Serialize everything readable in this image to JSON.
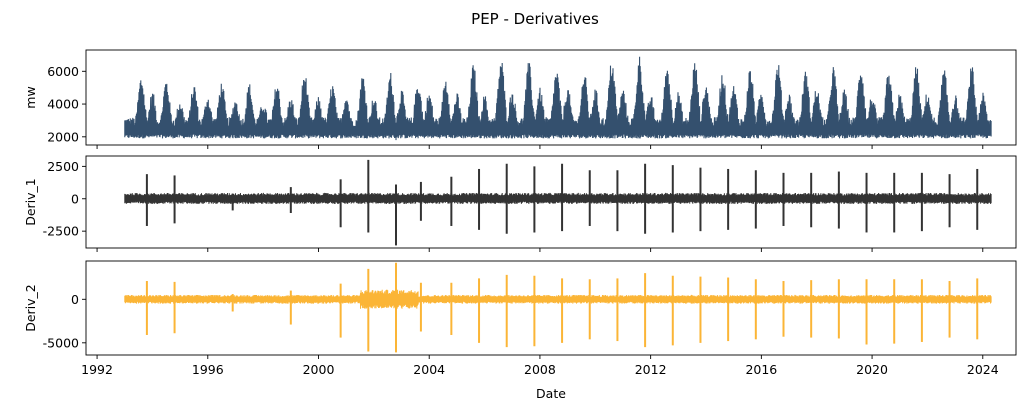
{
  "chart_data": {
    "type": "line",
    "title": "PEP - Derivatives",
    "xlabel": "Date",
    "x_ticks": [
      "1992",
      "1996",
      "2000",
      "2004",
      "2008",
      "2012",
      "2016",
      "2020",
      "2024"
    ],
    "xlim": [
      1991.6,
      2025.2
    ],
    "data_range": [
      1993.0,
      2024.3
    ],
    "panels": [
      {
        "name": "mw",
        "ylabel": "mw",
        "color": "#34506e",
        "ylim": [
          1500,
          7300
        ],
        "y_ticks": [
          2000,
          4000,
          6000
        ],
        "baseline_range": [
          1900,
          2600
        ],
        "seasonal_peaks": [
          {
            "x": 1993.6,
            "y": 5800
          },
          {
            "x": 1994.5,
            "y": 5600
          },
          {
            "x": 1995.5,
            "y": 5300
          },
          {
            "x": 1996.5,
            "y": 5400
          },
          {
            "x": 1997.5,
            "y": 5300
          },
          {
            "x": 1998.5,
            "y": 5400
          },
          {
            "x": 1999.5,
            "y": 6000
          },
          {
            "x": 2000.5,
            "y": 5300
          },
          {
            "x": 2001.6,
            "y": 5900
          },
          {
            "x": 2002.6,
            "y": 6000
          },
          {
            "x": 2003.6,
            "y": 5500
          },
          {
            "x": 2004.6,
            "y": 5700
          },
          {
            "x": 2005.6,
            "y": 6500
          },
          {
            "x": 2006.6,
            "y": 6900
          },
          {
            "x": 2007.6,
            "y": 6600
          },
          {
            "x": 2008.6,
            "y": 6200
          },
          {
            "x": 2009.6,
            "y": 6000
          },
          {
            "x": 2010.6,
            "y": 6800
          },
          {
            "x": 2011.6,
            "y": 7000
          },
          {
            "x": 2012.6,
            "y": 6500
          },
          {
            "x": 2013.6,
            "y": 6700
          },
          {
            "x": 2014.6,
            "y": 6000
          },
          {
            "x": 2015.6,
            "y": 6300
          },
          {
            "x": 2016.6,
            "y": 6600
          },
          {
            "x": 2017.6,
            "y": 6100
          },
          {
            "x": 2018.6,
            "y": 6400
          },
          {
            "x": 2019.6,
            "y": 6500
          },
          {
            "x": 2020.6,
            "y": 6000
          },
          {
            "x": 2021.6,
            "y": 6400
          },
          {
            "x": 2022.6,
            "y": 6200
          },
          {
            "x": 2023.6,
            "y": 6400
          }
        ],
        "winter_peaks": [
          {
            "x": 1994.0,
            "y": 4800
          },
          {
            "x": 1995.0,
            "y": 4300
          },
          {
            "x": 1996.0,
            "y": 4600
          },
          {
            "x": 1997.0,
            "y": 4400
          },
          {
            "x": 1998.0,
            "y": 4200
          },
          {
            "x": 1999.0,
            "y": 4500
          },
          {
            "x": 2000.0,
            "y": 4500
          },
          {
            "x": 2001.0,
            "y": 4700
          },
          {
            "x": 2002.0,
            "y": 4500
          },
          {
            "x": 2003.0,
            "y": 4900
          },
          {
            "x": 2004.0,
            "y": 4800
          },
          {
            "x": 2005.0,
            "y": 4700
          },
          {
            "x": 2006.0,
            "y": 4600
          },
          {
            "x": 2007.0,
            "y": 4900
          },
          {
            "x": 2008.0,
            "y": 5000
          },
          {
            "x": 2009.0,
            "y": 5100
          },
          {
            "x": 2010.0,
            "y": 5000
          },
          {
            "x": 2011.0,
            "y": 5000
          },
          {
            "x": 2012.0,
            "y": 4600
          },
          {
            "x": 2013.0,
            "y": 4800
          },
          {
            "x": 2014.0,
            "y": 5300
          },
          {
            "x": 2015.0,
            "y": 5200
          },
          {
            "x": 2016.0,
            "y": 4800
          },
          {
            "x": 2017.0,
            "y": 4700
          },
          {
            "x": 2018.0,
            "y": 5100
          },
          {
            "x": 2019.0,
            "y": 4900
          },
          {
            "x": 2020.0,
            "y": 4600
          },
          {
            "x": 2021.0,
            "y": 4700
          },
          {
            "x": 2022.0,
            "y": 4800
          },
          {
            "x": 2023.0,
            "y": 4600
          },
          {
            "x": 2024.0,
            "y": 4700
          }
        ],
        "dips": [
          {
            "x": 2002.8,
            "y": 1800
          },
          {
            "x": 2007.0,
            "y": 1900
          },
          {
            "x": 2010.9,
            "y": 2000
          }
        ]
      },
      {
        "name": "Deriv_1",
        "ylabel": "Deriv_1",
        "color": "#333333",
        "ylim": [
          -3800,
          3300
        ],
        "y_ticks": [
          -2500,
          0,
          2500
        ],
        "noise_band": [
          -400,
          450
        ],
        "spikes": [
          {
            "x": 1993.8,
            "hi": 1900,
            "lo": -2100
          },
          {
            "x": 1994.8,
            "hi": 1800,
            "lo": -1900
          },
          {
            "x": 1996.9,
            "hi": 400,
            "lo": -900
          },
          {
            "x": 1999.0,
            "hi": 900,
            "lo": -1100
          },
          {
            "x": 2000.8,
            "hi": 1500,
            "lo": -2200
          },
          {
            "x": 2001.8,
            "hi": 3000,
            "lo": -2600
          },
          {
            "x": 2002.8,
            "hi": 1100,
            "lo": -3600
          },
          {
            "x": 2003.7,
            "hi": 1300,
            "lo": -1700
          },
          {
            "x": 2004.8,
            "hi": 1700,
            "lo": -2100
          },
          {
            "x": 2005.8,
            "hi": 2300,
            "lo": -2400
          },
          {
            "x": 2006.8,
            "hi": 2700,
            "lo": -2700
          },
          {
            "x": 2007.8,
            "hi": 2500,
            "lo": -2600
          },
          {
            "x": 2008.8,
            "hi": 2700,
            "lo": -2500
          },
          {
            "x": 2009.8,
            "hi": 2200,
            "lo": -2100
          },
          {
            "x": 2010.8,
            "hi": 2200,
            "lo": -2500
          },
          {
            "x": 2011.8,
            "hi": 2700,
            "lo": -2700
          },
          {
            "x": 2012.8,
            "hi": 2600,
            "lo": -2600
          },
          {
            "x": 2013.8,
            "hi": 2400,
            "lo": -2500
          },
          {
            "x": 2014.8,
            "hi": 2300,
            "lo": -2400
          },
          {
            "x": 2015.8,
            "hi": 2200,
            "lo": -2300
          },
          {
            "x": 2016.8,
            "hi": 2000,
            "lo": -2100
          },
          {
            "x": 2017.8,
            "hi": 2000,
            "lo": -2200
          },
          {
            "x": 2018.8,
            "hi": 2100,
            "lo": -2300
          },
          {
            "x": 2019.8,
            "hi": 2000,
            "lo": -2600
          },
          {
            "x": 2020.8,
            "hi": 2000,
            "lo": -2600
          },
          {
            "x": 2021.8,
            "hi": 2000,
            "lo": -2500
          },
          {
            "x": 2022.8,
            "hi": 1900,
            "lo": -2200
          },
          {
            "x": 2023.8,
            "hi": 2300,
            "lo": -2400
          }
        ]
      },
      {
        "name": "Deriv_2",
        "ylabel": "Deriv_2",
        "color": "#fbb536",
        "ylim": [
          -6400,
          4400
        ],
        "y_ticks": [
          -5000,
          0
        ],
        "noise_band": [
          -500,
          500
        ],
        "spikes": [
          {
            "x": 1993.8,
            "hi": 2100,
            "lo": -4100
          },
          {
            "x": 1994.8,
            "hi": 2000,
            "lo": -3900
          },
          {
            "x": 1996.9,
            "hi": 600,
            "lo": -1400
          },
          {
            "x": 1999.0,
            "hi": 1000,
            "lo": -2900
          },
          {
            "x": 2000.8,
            "hi": 1800,
            "lo": -4400
          },
          {
            "x": 2001.8,
            "hi": 3500,
            "lo": -6000
          },
          {
            "x": 2002.8,
            "hi": 4200,
            "lo": -6100
          },
          {
            "x": 2003.7,
            "hi": 1900,
            "lo": -3700
          },
          {
            "x": 2004.8,
            "hi": 1900,
            "lo": -4100
          },
          {
            "x": 2005.8,
            "hi": 2400,
            "lo": -5000
          },
          {
            "x": 2006.8,
            "hi": 2800,
            "lo": -5500
          },
          {
            "x": 2007.8,
            "hi": 2700,
            "lo": -5400
          },
          {
            "x": 2008.8,
            "hi": 2400,
            "lo": -5000
          },
          {
            "x": 2009.8,
            "hi": 2300,
            "lo": -4600
          },
          {
            "x": 2010.8,
            "hi": 2400,
            "lo": -4800
          },
          {
            "x": 2011.8,
            "hi": 3000,
            "lo": -5500
          },
          {
            "x": 2012.8,
            "hi": 2700,
            "lo": -5300
          },
          {
            "x": 2013.8,
            "hi": 2600,
            "lo": -5000
          },
          {
            "x": 2014.8,
            "hi": 2500,
            "lo": -4800
          },
          {
            "x": 2015.8,
            "hi": 2300,
            "lo": -4600
          },
          {
            "x": 2016.8,
            "hi": 2100,
            "lo": -4300
          },
          {
            "x": 2017.8,
            "hi": 2200,
            "lo": -4400
          },
          {
            "x": 2018.8,
            "hi": 2300,
            "lo": -4500
          },
          {
            "x": 2019.8,
            "hi": 2300,
            "lo": -5200
          },
          {
            "x": 2020.8,
            "hi": 2300,
            "lo": -5100
          },
          {
            "x": 2021.8,
            "hi": 2300,
            "lo": -4900
          },
          {
            "x": 2022.8,
            "hi": 2100,
            "lo": -4400
          },
          {
            "x": 2023.8,
            "hi": 2400,
            "lo": -4600
          }
        ]
      }
    ]
  }
}
